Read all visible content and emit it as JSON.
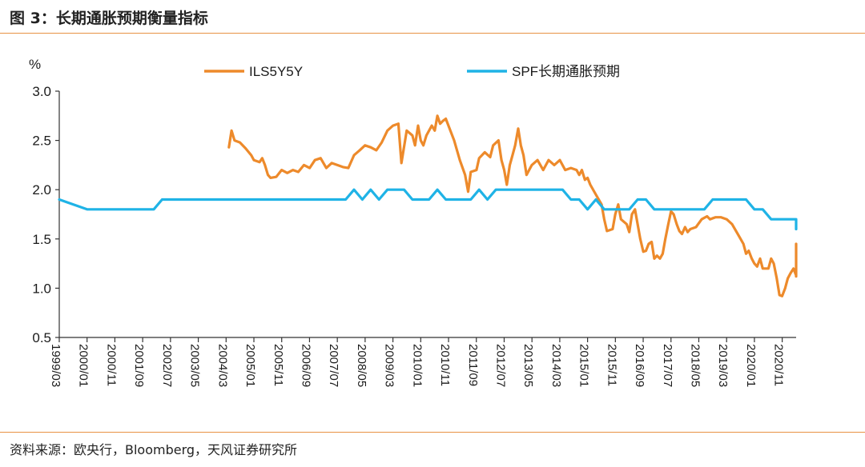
{
  "figure": {
    "title": "图 3：长期通胀预期衡量指标",
    "source": "资料来源：欧央行，Bloomberg，天风证券研究所"
  },
  "colors": {
    "orange": "#ed8a2b",
    "blue": "#1fb3e6",
    "rule": "#e89244",
    "axis": "#333333"
  },
  "chart_data": {
    "type": "line",
    "title": "",
    "ylabel": "%",
    "xlabel": "",
    "ylim": [
      0.5,
      3.0
    ],
    "yticks": [
      "0.5",
      "1.0",
      "1.5",
      "2.0",
      "2.5",
      "3.0"
    ],
    "xlim": [
      1999.167,
      2021.25
    ],
    "xticks": [
      "1999/03",
      "2000/01",
      "2000/11",
      "2001/09",
      "2002/07",
      "2003/05",
      "2004/03",
      "2005/01",
      "2005/11",
      "2006/09",
      "2007/07",
      "2008/05",
      "2009/03",
      "2010/01",
      "2010/11",
      "2011/09",
      "2012/07",
      "2013/05",
      "2014/03",
      "2015/01",
      "2015/11",
      "2016/09",
      "2017/07",
      "2018/05",
      "2019/03",
      "2020/01",
      "2020/11"
    ],
    "legend": "top",
    "series": [
      {
        "name": "ILS5Y5Y",
        "color": "#ed8a2b",
        "points": [
          [
            2004.25,
            2.43
          ],
          [
            2004.33,
            2.6
          ],
          [
            2004.42,
            2.5
          ],
          [
            2004.58,
            2.48
          ],
          [
            2004.75,
            2.42
          ],
          [
            2004.92,
            2.35
          ],
          [
            2005.0,
            2.3
          ],
          [
            2005.17,
            2.28
          ],
          [
            2005.25,
            2.32
          ],
          [
            2005.33,
            2.25
          ],
          [
            2005.42,
            2.15
          ],
          [
            2005.5,
            2.12
          ],
          [
            2005.67,
            2.13
          ],
          [
            2005.83,
            2.2
          ],
          [
            2006.0,
            2.17
          ],
          [
            2006.17,
            2.2
          ],
          [
            2006.33,
            2.18
          ],
          [
            2006.5,
            2.25
          ],
          [
            2006.67,
            2.22
          ],
          [
            2006.83,
            2.3
          ],
          [
            2007.0,
            2.32
          ],
          [
            2007.17,
            2.22
          ],
          [
            2007.33,
            2.27
          ],
          [
            2007.5,
            2.25
          ],
          [
            2007.67,
            2.23
          ],
          [
            2007.83,
            2.22
          ],
          [
            2008.0,
            2.35
          ],
          [
            2008.17,
            2.4
          ],
          [
            2008.33,
            2.45
          ],
          [
            2008.5,
            2.43
          ],
          [
            2008.67,
            2.4
          ],
          [
            2008.83,
            2.48
          ],
          [
            2009.0,
            2.6
          ],
          [
            2009.17,
            2.65
          ],
          [
            2009.33,
            2.67
          ],
          [
            2009.42,
            2.27
          ],
          [
            2009.58,
            2.6
          ],
          [
            2009.75,
            2.55
          ],
          [
            2009.83,
            2.45
          ],
          [
            2009.92,
            2.65
          ],
          [
            2010.0,
            2.5
          ],
          [
            2010.08,
            2.45
          ],
          [
            2010.17,
            2.55
          ],
          [
            2010.33,
            2.65
          ],
          [
            2010.42,
            2.6
          ],
          [
            2010.5,
            2.75
          ],
          [
            2010.58,
            2.67
          ],
          [
            2010.67,
            2.7
          ],
          [
            2010.75,
            2.72
          ],
          [
            2010.83,
            2.65
          ],
          [
            2011.0,
            2.5
          ],
          [
            2011.17,
            2.3
          ],
          [
            2011.33,
            2.15
          ],
          [
            2011.42,
            1.98
          ],
          [
            2011.5,
            2.18
          ],
          [
            2011.67,
            2.2
          ],
          [
            2011.75,
            2.32
          ],
          [
            2011.92,
            2.38
          ],
          [
            2012.08,
            2.33
          ],
          [
            2012.17,
            2.45
          ],
          [
            2012.33,
            2.5
          ],
          [
            2012.42,
            2.3
          ],
          [
            2012.5,
            2.2
          ],
          [
            2012.58,
            2.05
          ],
          [
            2012.67,
            2.25
          ],
          [
            2012.75,
            2.35
          ],
          [
            2012.83,
            2.45
          ],
          [
            2012.92,
            2.62
          ],
          [
            2013.0,
            2.45
          ],
          [
            2013.08,
            2.35
          ],
          [
            2013.17,
            2.15
          ],
          [
            2013.33,
            2.25
          ],
          [
            2013.5,
            2.3
          ],
          [
            2013.67,
            2.2
          ],
          [
            2013.83,
            2.3
          ],
          [
            2014.0,
            2.25
          ],
          [
            2014.17,
            2.3
          ],
          [
            2014.33,
            2.2
          ],
          [
            2014.5,
            2.22
          ],
          [
            2014.67,
            2.2
          ],
          [
            2014.75,
            2.15
          ],
          [
            2014.83,
            2.2
          ],
          [
            2014.92,
            2.1
          ],
          [
            2015.0,
            2.12
          ],
          [
            2015.08,
            2.05
          ],
          [
            2015.25,
            1.95
          ],
          [
            2015.42,
            1.85
          ],
          [
            2015.5,
            1.7
          ],
          [
            2015.58,
            1.58
          ],
          [
            2015.75,
            1.6
          ],
          [
            2015.83,
            1.75
          ],
          [
            2015.92,
            1.85
          ],
          [
            2016.0,
            1.7
          ],
          [
            2016.17,
            1.65
          ],
          [
            2016.25,
            1.57
          ],
          [
            2016.33,
            1.75
          ],
          [
            2016.42,
            1.8
          ],
          [
            2016.5,
            1.65
          ],
          [
            2016.58,
            1.5
          ],
          [
            2016.67,
            1.37
          ],
          [
            2016.75,
            1.38
          ],
          [
            2016.83,
            1.45
          ],
          [
            2016.92,
            1.47
          ],
          [
            2017.0,
            1.3
          ],
          [
            2017.08,
            1.33
          ],
          [
            2017.17,
            1.3
          ],
          [
            2017.25,
            1.35
          ],
          [
            2017.33,
            1.5
          ],
          [
            2017.42,
            1.65
          ],
          [
            2017.5,
            1.78
          ],
          [
            2017.58,
            1.75
          ],
          [
            2017.67,
            1.65
          ],
          [
            2017.75,
            1.58
          ],
          [
            2017.83,
            1.55
          ],
          [
            2017.92,
            1.62
          ],
          [
            2018.0,
            1.57
          ],
          [
            2018.08,
            1.6
          ],
          [
            2018.25,
            1.62
          ],
          [
            2018.42,
            1.7
          ],
          [
            2018.58,
            1.73
          ],
          [
            2018.67,
            1.7
          ],
          [
            2018.83,
            1.72
          ],
          [
            2019.0,
            1.72
          ],
          [
            2019.17,
            1.7
          ],
          [
            2019.33,
            1.65
          ],
          [
            2019.5,
            1.55
          ],
          [
            2019.67,
            1.45
          ],
          [
            2019.75,
            1.35
          ],
          [
            2019.83,
            1.38
          ],
          [
            2019.92,
            1.3
          ],
          [
            2020.0,
            1.25
          ],
          [
            2020.08,
            1.22
          ],
          [
            2020.17,
            1.3
          ],
          [
            2020.25,
            1.2
          ],
          [
            2020.42,
            1.2
          ],
          [
            2020.5,
            1.3
          ],
          [
            2020.58,
            1.25
          ],
          [
            2020.67,
            1.1
          ],
          [
            2020.75,
            0.93
          ],
          [
            2020.83,
            0.92
          ],
          [
            2020.92,
            1.0
          ],
          [
            2021.0,
            1.1
          ],
          [
            2021.08,
            1.15
          ],
          [
            2021.17,
            1.2
          ],
          [
            2021.25,
            1.13
          ],
          [
            2021.33,
            1.12
          ],
          [
            2021.42,
            1.2
          ],
          [
            2021.58,
            1.28
          ],
          [
            2021.67,
            1.33
          ],
          [
            2021.75,
            1.38
          ],
          [
            2021.83,
            1.45
          ]
        ]
      },
      {
        "name": "SPF长期通胀预期",
        "color": "#1fb3e6",
        "points": [
          [
            1999.167,
            1.9
          ],
          [
            2000.0,
            1.8
          ],
          [
            2002.0,
            1.8
          ],
          [
            2002.25,
            1.9
          ],
          [
            2007.75,
            1.9
          ],
          [
            2008.0,
            2.0
          ],
          [
            2008.25,
            1.9
          ],
          [
            2008.5,
            2.0
          ],
          [
            2008.75,
            1.9
          ],
          [
            2009.0,
            2.0
          ],
          [
            2009.5,
            2.0
          ],
          [
            2009.75,
            1.9
          ],
          [
            2010.25,
            1.9
          ],
          [
            2010.5,
            2.0
          ],
          [
            2010.75,
            1.9
          ],
          [
            2011.5,
            1.9
          ],
          [
            2011.75,
            2.0
          ],
          [
            2012.0,
            1.9
          ],
          [
            2012.25,
            2.0
          ],
          [
            2014.25,
            2.0
          ],
          [
            2014.5,
            1.9
          ],
          [
            2014.75,
            1.9
          ],
          [
            2015.0,
            1.8
          ],
          [
            2015.25,
            1.9
          ],
          [
            2015.5,
            1.8
          ],
          [
            2016.25,
            1.8
          ],
          [
            2016.5,
            1.9
          ],
          [
            2016.75,
            1.9
          ],
          [
            2017.0,
            1.8
          ],
          [
            2018.5,
            1.8
          ],
          [
            2018.75,
            1.9
          ],
          [
            2019.75,
            1.9
          ],
          [
            2020.0,
            1.8
          ],
          [
            2020.25,
            1.8
          ],
          [
            2020.5,
            1.7
          ],
          [
            2021.25,
            1.7
          ],
          [
            2021.5,
            1.6
          ],
          [
            2021.75,
            1.7
          ],
          [
            2022.0,
            1.7
          ]
        ]
      }
    ]
  }
}
